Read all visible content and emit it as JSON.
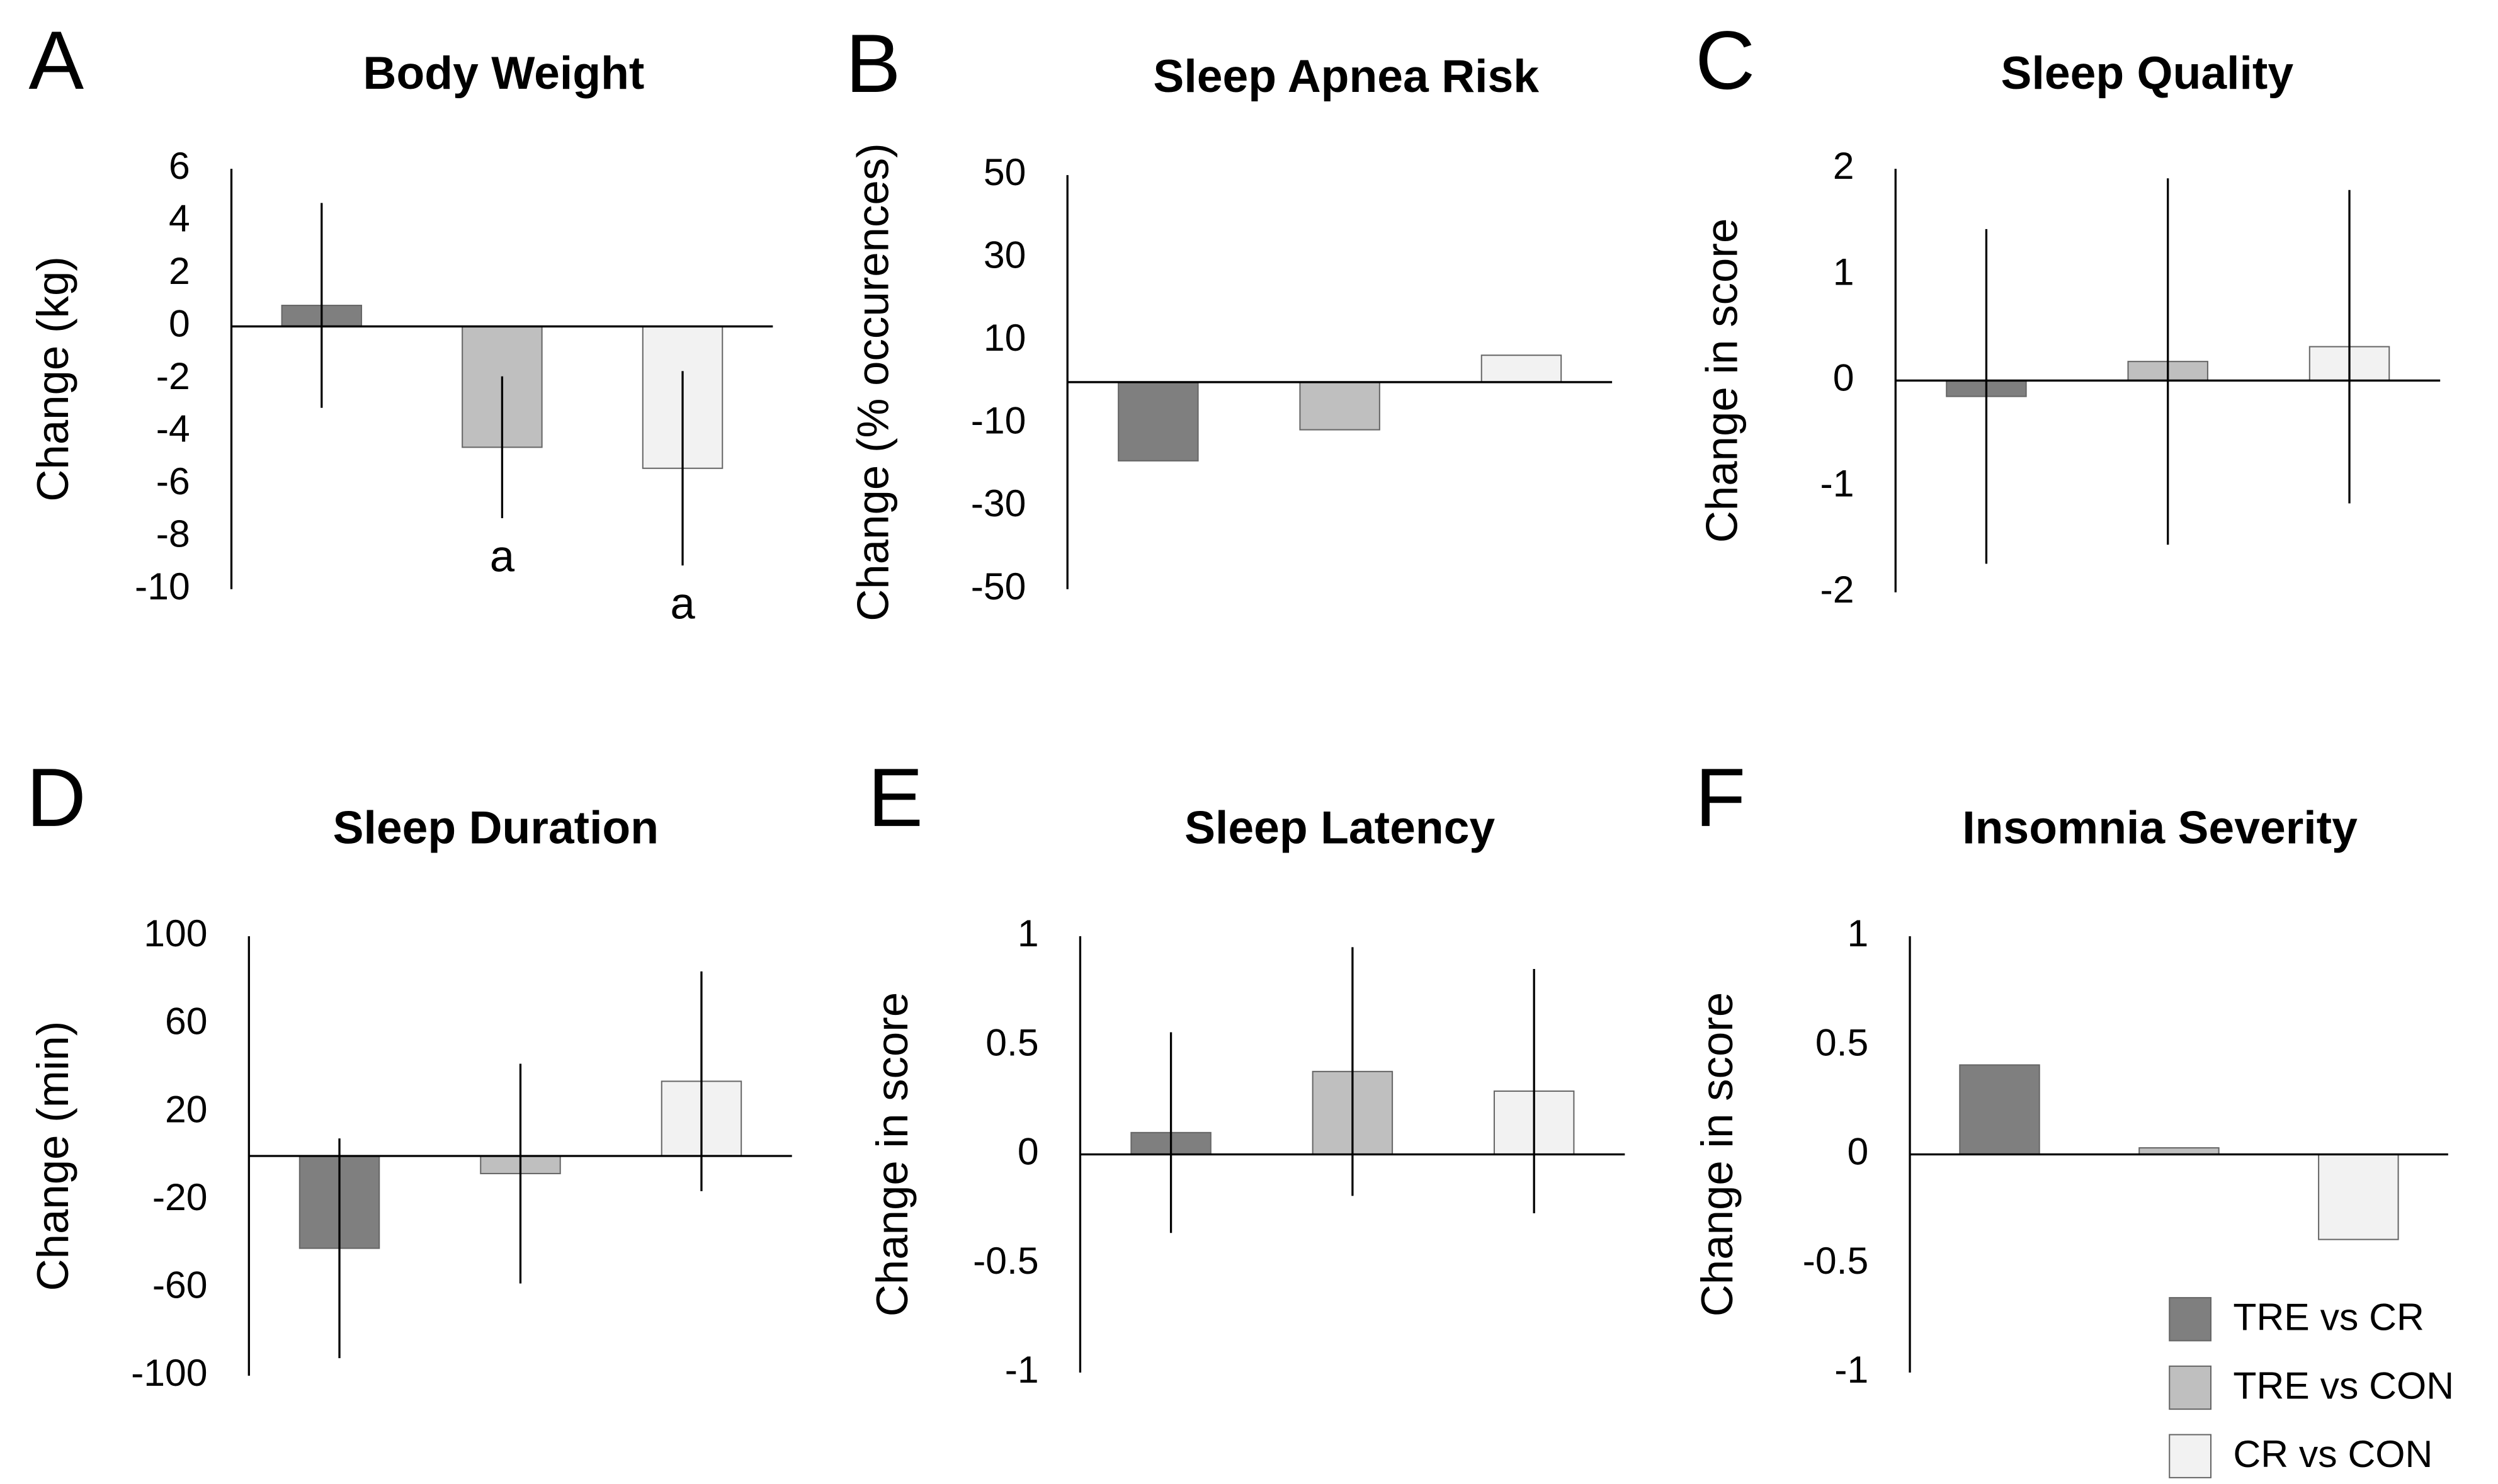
{
  "chart_data": [
    {
      "type": "bar",
      "panel": "A",
      "title": "Body Weight",
      "y_label": "Change (kg)",
      "categories": [
        null,
        null,
        null
      ],
      "values": [
        0.8,
        -4.6,
        -5.4
      ],
      "errors": [
        3.9,
        2.7,
        3.7
      ],
      "annotations": [
        null,
        "a",
        "a"
      ],
      "ylim": [
        -10,
        6
      ],
      "yticks": [
        -10,
        -8,
        -6,
        -4,
        -2,
        0,
        2,
        4,
        6
      ]
    },
    {
      "type": "bar",
      "panel": "B",
      "title": "Sleep Apnea Risk",
      "y_label": "Change (% occurences)",
      "categories": [
        null,
        null,
        null
      ],
      "values": [
        -19,
        -11.5,
        6.5
      ],
      "ylim": [
        -50,
        50
      ],
      "yticks": [
        -50,
        -30,
        -10,
        10,
        30,
        50
      ]
    },
    {
      "type": "bar",
      "panel": "C",
      "title": "Sleep Quality",
      "y_label": "Change in score",
      "categories": [
        null,
        null,
        null
      ],
      "values": [
        -0.15,
        0.18,
        0.32
      ],
      "errors": [
        1.58,
        1.73,
        1.48
      ],
      "ylim": [
        -2,
        2
      ],
      "yticks": [
        -2,
        -1,
        0,
        1,
        2
      ]
    },
    {
      "type": "bar",
      "panel": "D",
      "title": "Sleep Duration",
      "y_label": "Change (min)",
      "categories": [
        null,
        null,
        null
      ],
      "values": [
        -42,
        -8,
        34
      ],
      "errors": [
        50,
        50,
        50
      ],
      "ylim": [
        -100,
        100
      ],
      "yticks": [
        -100,
        -60,
        -20,
        20,
        60,
        100
      ]
    },
    {
      "type": "bar",
      "panel": "E",
      "title": "Sleep Latency",
      "y_label": "Change in score",
      "categories": [
        null,
        null,
        null
      ],
      "values": [
        0.1,
        0.38,
        0.29
      ],
      "errors": [
        0.46,
        0.57,
        0.56
      ],
      "ylim": [
        -1,
        1
      ],
      "yticks": [
        -1,
        -0.5,
        0,
        0.5,
        1
      ]
    },
    {
      "type": "bar",
      "panel": "F",
      "title": "Insomnia Severity",
      "y_label": "Change in score",
      "categories": [
        null,
        null,
        null
      ],
      "values": [
        0.41,
        0.03,
        -0.39
      ],
      "ylim": [
        -1,
        1
      ],
      "yticks": [
        -1,
        -0.5,
        0,
        0.5,
        1
      ]
    }
  ],
  "legend": [
    {
      "name": "TRE vs CR",
      "color": "#7f7f7f"
    },
    {
      "name": "TRE vs CON",
      "color": "#bfbfbf"
    },
    {
      "name": "CR vs CON",
      "color": "#f2f2f2"
    }
  ]
}
